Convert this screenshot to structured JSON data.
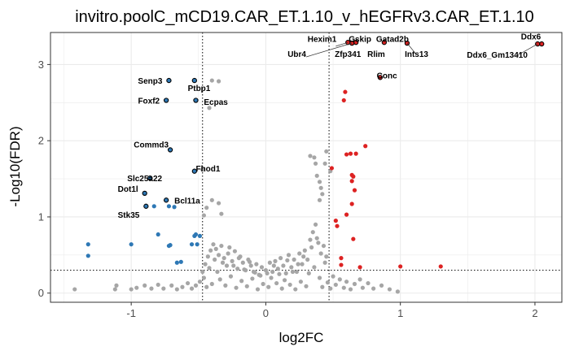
{
  "chart_data": {
    "type": "scatter",
    "title": "invitro.poolC_mCD19.CAR_ET.1.10_v_hEGFRv3.CAR_ET.1.10",
    "xlabel": "log2FC",
    "ylabel": "-Log10(FDR)",
    "xlim": [
      -1.6,
      2.2
    ],
    "ylim": [
      -0.12,
      3.42
    ],
    "xticks": [
      -1,
      0,
      1,
      2
    ],
    "xtick_labels": [
      "-1",
      "0",
      "1",
      "2"
    ],
    "yticks": [
      0,
      1,
      2,
      3
    ],
    "ytick_labels": [
      "0",
      "1",
      "2",
      "3"
    ],
    "thresholds": {
      "log2fc": [
        -0.47,
        0.47
      ],
      "fdr": 0.3
    },
    "grid": true,
    "legend": "none",
    "colors": {
      "down": "#2e78b5",
      "up": "#dd2222",
      "ns": "#a6a6a6",
      "label_outline": "#000000",
      "grid": "#ebebeb",
      "panel_border": "#333333"
    },
    "series": [
      {
        "group": "up",
        "points": [
          [
            2.05,
            3.27
          ],
          [
            2.02,
            3.27
          ],
          [
            1.05,
            3.28
          ],
          [
            0.88,
            3.29
          ],
          [
            0.67,
            3.29
          ],
          [
            0.64,
            3.28
          ],
          [
            0.61,
            3.29
          ],
          [
            0.85,
            2.83
          ],
          [
            0.59,
            2.64
          ],
          [
            0.58,
            2.53
          ],
          [
            0.74,
            1.93
          ],
          [
            0.67,
            1.83
          ],
          [
            0.6,
            1.82
          ],
          [
            0.63,
            1.83
          ],
          [
            0.49,
            1.64
          ],
          [
            0.64,
            1.55
          ],
          [
            0.65,
            1.53
          ],
          [
            0.64,
            1.47
          ],
          [
            0.66,
            1.35
          ],
          [
            0.64,
            1.17
          ],
          [
            0.6,
            1.03
          ],
          [
            0.52,
            0.95
          ],
          [
            0.53,
            0.88
          ],
          [
            0.65,
            0.71
          ],
          [
            0.56,
            0.46
          ],
          [
            0.56,
            0.37
          ],
          [
            0.7,
            0.34
          ],
          [
            1.0,
            0.35
          ],
          [
            1.3,
            0.35
          ]
        ]
      },
      {
        "group": "down",
        "points": [
          [
            -1.32,
            0.64
          ],
          [
            -1.32,
            0.49
          ],
          [
            -1.0,
            0.64
          ],
          [
            -0.8,
            0.77
          ],
          [
            -0.72,
            0.62
          ],
          [
            -0.71,
            0.63
          ],
          [
            -0.55,
            0.64
          ],
          [
            -0.51,
            0.64
          ],
          [
            -0.53,
            0.75
          ],
          [
            -0.49,
            0.75
          ],
          [
            -0.66,
            0.4
          ],
          [
            -0.63,
            0.41
          ],
          [
            -0.52,
            0.77
          ],
          [
            -0.83,
            1.14
          ],
          [
            -0.68,
            1.13
          ],
          [
            -0.72,
            1.14
          ]
        ]
      },
      {
        "group": "down_labeled",
        "points": [
          [
            -0.72,
            2.79
          ],
          [
            -0.74,
            2.53
          ],
          [
            -0.71,
            1.88
          ],
          [
            -0.86,
            1.51
          ],
          [
            -0.9,
            1.31
          ],
          [
            -0.89,
            1.14
          ],
          [
            -0.74,
            1.22
          ],
          [
            -0.53,
            2.79
          ],
          [
            -0.52,
            2.53
          ],
          [
            -0.53,
            1.6
          ]
        ]
      },
      {
        "group": "up_labeled",
        "points": [
          [
            2.05,
            3.27
          ],
          [
            2.02,
            3.27
          ],
          [
            1.05,
            3.28
          ],
          [
            0.88,
            3.29
          ],
          [
            0.67,
            3.29
          ],
          [
            0.64,
            3.28
          ],
          [
            0.61,
            3.29
          ],
          [
            0.85,
            2.83
          ]
        ]
      },
      {
        "group": "ns",
        "points": [
          [
            -1.42,
            0.05
          ],
          [
            -1.12,
            0.05
          ],
          [
            -1.11,
            0.1
          ],
          [
            -1.0,
            0.05
          ],
          [
            -0.96,
            0.07
          ],
          [
            -0.9,
            0.1
          ],
          [
            -0.85,
            0.06
          ],
          [
            -0.8,
            0.11
          ],
          [
            -0.76,
            0.06
          ],
          [
            -0.7,
            0.1
          ],
          [
            -0.66,
            0.05
          ],
          [
            -0.62,
            0.08
          ],
          [
            -0.58,
            0.13
          ],
          [
            -0.55,
            0.06
          ],
          [
            -0.52,
            0.1
          ],
          [
            -0.49,
            0.15
          ],
          [
            -0.46,
            0.2
          ],
          [
            -0.44,
            0.08
          ],
          [
            -0.42,
            0.33
          ],
          [
            -0.4,
            0.12
          ],
          [
            -0.38,
            0.44
          ],
          [
            -0.36,
            0.28
          ],
          [
            -0.34,
            0.18
          ],
          [
            -0.32,
            0.4
          ],
          [
            -0.3,
            0.1
          ],
          [
            -0.28,
            0.52
          ],
          [
            -0.26,
            0.22
          ],
          [
            -0.24,
            0.36
          ],
          [
            -0.22,
            0.07
          ],
          [
            -0.2,
            0.46
          ],
          [
            -0.18,
            0.16
          ],
          [
            -0.16,
            0.31
          ],
          [
            -0.14,
            0.09
          ],
          [
            -0.12,
            0.41
          ],
          [
            -0.1,
            0.19
          ],
          [
            -0.08,
            0.27
          ],
          [
            -0.06,
            0.05
          ],
          [
            -0.04,
            0.23
          ],
          [
            -0.02,
            0.12
          ],
          [
            0.0,
            0.3
          ],
          [
            0.02,
            0.08
          ],
          [
            0.04,
            0.2
          ],
          [
            0.06,
            0.36
          ],
          [
            0.08,
            0.13
          ],
          [
            0.1,
            0.25
          ],
          [
            0.12,
            0.06
          ],
          [
            0.14,
            0.17
          ],
          [
            0.16,
            0.43
          ],
          [
            0.18,
            0.11
          ],
          [
            0.2,
            0.28
          ],
          [
            0.22,
            0.05
          ],
          [
            0.24,
            0.38
          ],
          [
            0.26,
            0.15
          ],
          [
            0.28,
            0.48
          ],
          [
            0.3,
            0.09
          ],
          [
            0.32,
            0.26
          ],
          [
            0.34,
            0.6
          ],
          [
            0.36,
            0.34
          ],
          [
            0.38,
            0.72
          ],
          [
            0.4,
            0.2
          ],
          [
            0.42,
            0.08
          ],
          [
            0.44,
            0.4
          ],
          [
            0.46,
            0.14
          ],
          [
            0.48,
            0.06
          ],
          [
            0.5,
            0.22
          ],
          [
            0.52,
            0.11
          ],
          [
            0.55,
            0.18
          ],
          [
            0.58,
            0.07
          ],
          [
            0.6,
            0.15
          ],
          [
            0.63,
            0.05
          ],
          [
            0.66,
            0.12
          ],
          [
            0.7,
            0.18
          ],
          [
            0.72,
            0.07
          ],
          [
            0.76,
            0.13
          ],
          [
            0.8,
            0.06
          ],
          [
            0.86,
            0.1
          ],
          [
            0.92,
            0.05
          ],
          [
            0.98,
            0.02
          ],
          [
            -0.47,
            0.28
          ],
          [
            -0.45,
            0.38
          ],
          [
            -0.43,
            0.48
          ],
          [
            -0.41,
            0.56
          ],
          [
            -0.39,
            0.64
          ],
          [
            -0.37,
            0.58
          ],
          [
            -0.35,
            0.5
          ],
          [
            -0.33,
            0.62
          ],
          [
            -0.31,
            0.46
          ],
          [
            -0.29,
            0.36
          ],
          [
            -0.27,
            0.6
          ],
          [
            -0.25,
            0.42
          ],
          [
            -0.23,
            0.55
          ],
          [
            -0.21,
            0.32
          ],
          [
            -0.19,
            0.48
          ],
          [
            -0.17,
            0.4
          ],
          [
            -0.15,
            0.3
          ],
          [
            -0.13,
            0.44
          ],
          [
            -0.11,
            0.36
          ],
          [
            -0.09,
            0.28
          ],
          [
            -0.07,
            0.38
          ],
          [
            -0.05,
            0.24
          ],
          [
            -0.03,
            0.34
          ],
          [
            0.01,
            0.26
          ],
          [
            0.03,
            0.4
          ],
          [
            0.05,
            0.28
          ],
          [
            0.07,
            0.42
          ],
          [
            0.09,
            0.32
          ],
          [
            0.11,
            0.46
          ],
          [
            0.13,
            0.36
          ],
          [
            0.15,
            0.26
          ],
          [
            0.17,
            0.5
          ],
          [
            0.19,
            0.34
          ],
          [
            0.21,
            0.44
          ],
          [
            0.23,
            0.28
          ],
          [
            0.25,
            0.52
          ],
          [
            0.27,
            0.38
          ],
          [
            0.29,
            0.56
          ],
          [
            0.31,
            0.44
          ],
          [
            0.33,
            0.7
          ],
          [
            0.35,
            0.8
          ],
          [
            0.37,
            0.9
          ],
          [
            0.39,
            0.66
          ],
          [
            0.41,
            0.52
          ],
          [
            0.43,
            0.62
          ],
          [
            0.45,
            0.48
          ],
          [
            -0.46,
            1.02
          ],
          [
            -0.44,
            1.12
          ],
          [
            -0.4,
            1.22
          ],
          [
            -0.35,
            1.18
          ],
          [
            -0.33,
            1.04
          ],
          [
            -0.47,
            1.62
          ],
          [
            -0.42,
            2.43
          ],
          [
            -0.35,
            2.78
          ],
          [
            -0.4,
            2.79
          ],
          [
            0.33,
            1.8
          ],
          [
            0.36,
            1.78
          ],
          [
            0.37,
            1.7
          ],
          [
            0.38,
            1.54
          ],
          [
            0.4,
            1.46
          ],
          [
            0.41,
            1.38
          ],
          [
            0.42,
            1.3
          ],
          [
            0.4,
            1.22
          ],
          [
            0.44,
            1.7
          ],
          [
            0.45,
            1.86
          ],
          [
            0.48,
            1.6
          ]
        ]
      }
    ],
    "labels": [
      {
        "text": "Senp3",
        "x": -0.72,
        "y": 2.79,
        "anchor": "end",
        "dx": -8,
        "dy": 4
      },
      {
        "text": "Ptbp1",
        "x": -0.58,
        "y": 2.65,
        "anchor": "start",
        "dx": 0,
        "dy": 0
      },
      {
        "text": "Foxf2",
        "x": -0.74,
        "y": 2.53,
        "anchor": "end",
        "dx": -8,
        "dy": 4
      },
      {
        "text": "Ecpas",
        "x": -0.46,
        "y": 2.47,
        "anchor": "start",
        "dx": 0,
        "dy": 0
      },
      {
        "text": "Commd3",
        "x": -0.71,
        "y": 1.88,
        "anchor": "end",
        "dx": -2,
        "dy": -3
      },
      {
        "text": "Fhod1",
        "x": -0.52,
        "y": 1.64,
        "anchor": "start",
        "dx": 0,
        "dy": 4
      },
      {
        "text": "Slc25a22",
        "x": -0.86,
        "y": 1.51,
        "anchor": "start",
        "dx": -28,
        "dy": 4
      },
      {
        "text": "Dot1l",
        "x": -0.9,
        "y": 1.31,
        "anchor": "end",
        "dx": -8,
        "dy": -2
      },
      {
        "text": "Bcl11a",
        "x": -0.74,
        "y": 1.22,
        "anchor": "start",
        "dx": 10,
        "dy": 4
      },
      {
        "text": "Stk35",
        "x": -0.89,
        "y": 1.14,
        "anchor": "end",
        "dx": -8,
        "dy": 14
      },
      {
        "text": "Hexim1",
        "x": 0.55,
        "y": 3.3,
        "anchor": "end",
        "dx": -4,
        "dy": 0
      },
      {
        "text": "Gskip",
        "x": 0.64,
        "y": 3.3,
        "anchor": "start",
        "dx": -4,
        "dy": 0
      },
      {
        "text": "Gatad2b",
        "x": 0.82,
        "y": 3.3,
        "anchor": "start",
        "dx": 0,
        "dy": 0
      },
      {
        "text": "Ubr4",
        "x": 0.3,
        "y": 3.1,
        "anchor": "end",
        "dx": 0,
        "dy": 0
      },
      {
        "text": "Zfp341",
        "x": 0.61,
        "y": 3.1,
        "anchor": "middle",
        "dx": 0,
        "dy": 0
      },
      {
        "text": "Rlim",
        "x": 0.82,
        "y": 3.1,
        "anchor": "middle",
        "dx": 0,
        "dy": 0
      },
      {
        "text": "Ints13",
        "x": 1.12,
        "y": 3.1,
        "anchor": "middle",
        "dx": 0,
        "dy": 0
      },
      {
        "text": "Ddx6",
        "x": 1.97,
        "y": 3.33,
        "anchor": "middle",
        "dx": 0,
        "dy": 0
      },
      {
        "text": "Ddx6_Gm13410",
        "x": 1.72,
        "y": 3.09,
        "anchor": "middle",
        "dx": 0,
        "dy": 0
      },
      {
        "text": "Conc",
        "x": 0.9,
        "y": 2.82,
        "anchor": "middle",
        "dx": 0,
        "dy": 0
      }
    ],
    "label_lines": [
      {
        "from": [
          0.3,
          3.1
        ],
        "to": [
          0.64,
          3.28
        ]
      },
      {
        "from": [
          0.52,
          3.24
        ],
        "to": [
          0.61,
          3.29
        ]
      },
      {
        "from": [
          1.12,
          3.13
        ],
        "to": [
          1.05,
          3.28
        ]
      },
      {
        "from": [
          1.85,
          3.1
        ],
        "to": [
          2.02,
          3.27
        ]
      }
    ]
  }
}
